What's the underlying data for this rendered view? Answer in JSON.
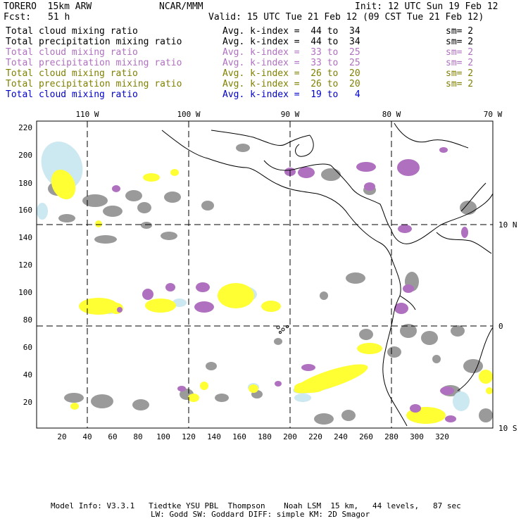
{
  "header": {
    "model": "TORERO  15km ARW",
    "org": "NCAR/MMM",
    "init": "Init: 12 UTC Sun 19 Feb 12",
    "fcst_label": "Fcst:",
    "fcst_value": "51 h",
    "valid": "Valid: 15 UTC Tue 21 Feb 12 (09 CST Tue 21 Feb 12)"
  },
  "legend": [
    {
      "field": "Total cloud mixing ratio",
      "index": "Avg. k-index =  44 to  34",
      "sm": "sm= 2",
      "color": "#000000"
    },
    {
      "field": "Total precipitation mixing ratio",
      "index": "Avg. k-index =  44 to  34",
      "sm": "sm= 2",
      "color": "#000000"
    },
    {
      "field": "Total cloud mixing ratio",
      "index": "Avg. k-index =  33 to  25",
      "sm": "sm= 2",
      "color": "#b070c0"
    },
    {
      "field": "Total precipitation mixing ratio",
      "index": "Avg. k-index =  33 to  25",
      "sm": "sm= 2",
      "color": "#b070c0"
    },
    {
      "field": "Total cloud mixing ratio",
      "index": "Avg. k-index =  26 to  20",
      "sm": "sm= 2",
      "color": "#808000"
    },
    {
      "field": "Total precipitation mixing ratio",
      "index": "Avg. k-index =  26 to  20",
      "sm": "sm= 2",
      "color": "#808000"
    },
    {
      "field": "Total cloud mixing ratio",
      "index": "Avg. k-index =  19 to   4",
      "sm": "",
      "color": "#0000cc"
    }
  ],
  "map": {
    "lon_labels": [
      "110 W",
      "100 W",
      "90 W",
      "80 W",
      "70 W"
    ],
    "lat_labels": [
      "10 N",
      "0",
      "10 S"
    ],
    "y_ticks": [
      "220",
      "200",
      "180",
      "160",
      "140",
      "120",
      "100",
      "80",
      "60",
      "40",
      "20"
    ],
    "x_ticks": [
      "20",
      "40",
      "60",
      "80",
      "100",
      "120",
      "140",
      "160",
      "180",
      "200",
      "220",
      "240",
      "260",
      "280",
      "300",
      "320"
    ],
    "colors": {
      "gray": "#9a9a9a",
      "purple": "#b070c0",
      "yellow": "#ffff33",
      "lightblue": "#cce8f0",
      "coast": "#000000"
    }
  },
  "footer": {
    "line1": "Model Info: V3.3.1   Tiedtke YSU PBL  Thompson    Noah LSM  15 km,   44 levels,   87 sec",
    "line2": "LW: Godd SW: Goddard DIFF: simple KM: 2D Smagor"
  }
}
